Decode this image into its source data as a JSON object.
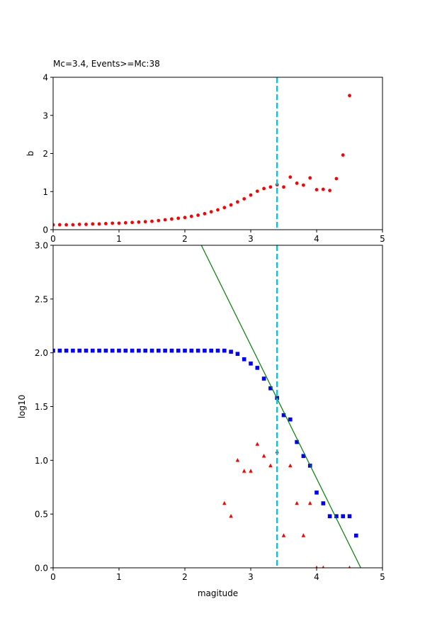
{
  "figure_title": "Mc=3.4, Events>=Mc:38",
  "chart_data": [
    {
      "type": "scatter",
      "title": "Mc=3.4, Events>=Mc:38",
      "xlabel": "",
      "ylabel": "b",
      "xlim": [
        0,
        5
      ],
      "ylim": [
        0,
        4
      ],
      "xticks": [
        "0",
        "1",
        "2",
        "3",
        "4",
        "5"
      ],
      "yticks": [
        "0",
        "1",
        "2",
        "3",
        "4"
      ],
      "grid": false,
      "mc_line": {
        "x": 3.4,
        "color": "#17becf",
        "style": "dashed"
      },
      "series": [
        {
          "color": "#ff0000",
          "marker": "circle",
          "x": [
            0.0,
            0.1,
            0.2,
            0.3,
            0.4,
            0.5,
            0.6,
            0.7,
            0.8,
            0.9,
            1.0,
            1.1,
            1.2,
            1.3,
            1.4,
            1.5,
            1.6,
            1.7,
            1.8,
            1.9,
            2.0,
            2.1,
            2.2,
            2.3,
            2.4,
            2.5,
            2.6,
            2.7,
            2.8,
            2.9,
            3.0,
            3.1,
            3.2,
            3.3,
            3.4,
            3.5,
            3.6,
            3.7,
            3.8,
            3.9,
            4.0,
            4.1,
            4.2,
            4.3,
            4.4,
            4.5
          ],
          "y": [
            0.13,
            0.13,
            0.13,
            0.13,
            0.14,
            0.14,
            0.15,
            0.15,
            0.16,
            0.17,
            0.17,
            0.18,
            0.19,
            0.2,
            0.21,
            0.22,
            0.24,
            0.26,
            0.28,
            0.3,
            0.32,
            0.35,
            0.38,
            0.42,
            0.47,
            0.52,
            0.58,
            0.65,
            0.73,
            0.81,
            0.91,
            1.01,
            1.08,
            1.12,
            1.18,
            1.12,
            1.38,
            1.22,
            1.17,
            1.36,
            1.05,
            1.06,
            1.03,
            1.34,
            1.96,
            3.52
          ]
        }
      ]
    },
    {
      "type": "scatter",
      "title": "",
      "xlabel": "magitude",
      "ylabel": "log10",
      "xlim": [
        0,
        5
      ],
      "ylim": [
        0,
        3
      ],
      "xticks": [
        "0",
        "1",
        "2",
        "3",
        "4",
        "5"
      ],
      "yticks": [
        "0.0",
        "0.5",
        "1.0",
        "1.5",
        "2.0",
        "2.5",
        "3.0"
      ],
      "grid": false,
      "mc_line": {
        "x": 3.4,
        "color": "#17becf",
        "style": "dashed"
      },
      "fit_line": {
        "color": "#008000",
        "x": [
          2.25,
          4.67
        ],
        "y": [
          3.0,
          0.0
        ]
      },
      "series": [
        {
          "color": "#0000ff",
          "marker": "square",
          "x": [
            0.0,
            0.1,
            0.2,
            0.3,
            0.4,
            0.5,
            0.6,
            0.7,
            0.8,
            0.9,
            1.0,
            1.1,
            1.2,
            1.3,
            1.4,
            1.5,
            1.6,
            1.7,
            1.8,
            1.9,
            2.0,
            2.1,
            2.2,
            2.3,
            2.4,
            2.5,
            2.6,
            2.7,
            2.8,
            2.9,
            3.0,
            3.1,
            3.2,
            3.3,
            3.4,
            3.5,
            3.6,
            3.7,
            3.8,
            3.9,
            4.0,
            4.1,
            4.2,
            4.3,
            4.4,
            4.5,
            4.6
          ],
          "y": [
            2.02,
            2.02,
            2.02,
            2.02,
            2.02,
            2.02,
            2.02,
            2.02,
            2.02,
            2.02,
            2.02,
            2.02,
            2.02,
            2.02,
            2.02,
            2.02,
            2.02,
            2.02,
            2.02,
            2.02,
            2.02,
            2.02,
            2.02,
            2.02,
            2.02,
            2.02,
            2.02,
            2.01,
            1.99,
            1.94,
            1.9,
            1.86,
            1.76,
            1.67,
            1.58,
            1.42,
            1.38,
            1.17,
            1.04,
            0.95,
            0.7,
            0.6,
            0.48,
            0.48,
            0.48,
            0.48,
            0.3
          ]
        },
        {
          "color": "#ff0000",
          "marker": "triangle",
          "x": [
            2.6,
            2.7,
            2.8,
            2.9,
            3.0,
            3.1,
            3.2,
            3.3,
            3.4,
            3.5,
            3.6,
            3.7,
            3.8,
            3.9,
            4.0,
            4.1,
            4.5
          ],
          "y": [
            0.6,
            0.48,
            1.0,
            0.9,
            0.9,
            1.15,
            1.04,
            0.95,
            1.08,
            0.3,
            0.95,
            0.6,
            0.3,
            0.6,
            0.0,
            0.0,
            0.0
          ]
        }
      ]
    }
  ]
}
